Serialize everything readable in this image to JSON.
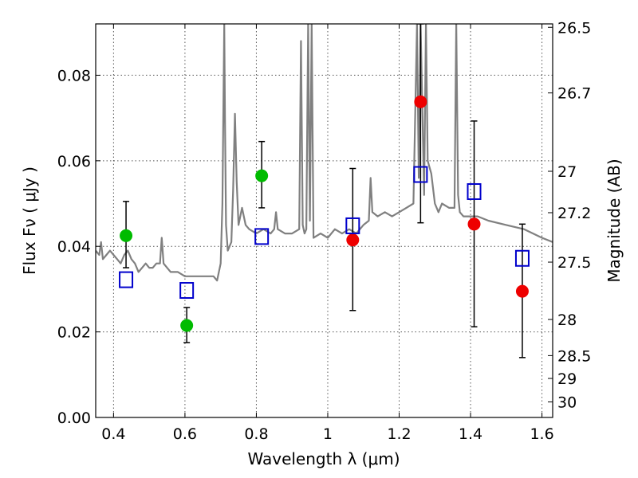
{
  "chart_data": {
    "type": "scatter",
    "xlabel": "Wavelength  λ (μm)",
    "ylabel": "Flux  Fν  ( μJy )",
    "y2label": "Magnitude (AB)",
    "xlim": [
      0.35,
      1.63
    ],
    "ylim": [
      0.0,
      0.092
    ],
    "grid": true,
    "x_ticks": [
      {
        "value": 0.4,
        "label": "0.4"
      },
      {
        "value": 0.6,
        "label": "0.6"
      },
      {
        "value": 0.8,
        "label": "0.8"
      },
      {
        "value": 1.0,
        "label": "1"
      },
      {
        "value": 1.2,
        "label": "1.2"
      },
      {
        "value": 1.4,
        "label": "1.4"
      },
      {
        "value": 1.6,
        "label": "1.6"
      }
    ],
    "y_ticks": [
      {
        "value": 0.0,
        "label": "0.00"
      },
      {
        "value": 0.02,
        "label": "0.02"
      },
      {
        "value": 0.04,
        "label": "0.04"
      },
      {
        "value": 0.06,
        "label": "0.06"
      },
      {
        "value": 0.08,
        "label": "0.08"
      }
    ],
    "y2_ticks": [
      {
        "value": 26.5,
        "label": "26.5"
      },
      {
        "value": 26.7,
        "label": "26.7"
      },
      {
        "value": 27.0,
        "label": "27"
      },
      {
        "value": 27.2,
        "label": "27.2"
      },
      {
        "value": 27.5,
        "label": "27.5"
      },
      {
        "value": 28.0,
        "label": "28"
      },
      {
        "value": 28.5,
        "label": "28.5"
      },
      {
        "value": 29.0,
        "label": "29"
      },
      {
        "value": 30.0,
        "label": "30"
      }
    ],
    "series": [
      {
        "kind": "line",
        "color": "#808080",
        "x": [
          0.35,
          0.36,
          0.365,
          0.37,
          0.38,
          0.39,
          0.4,
          0.41,
          0.42,
          0.43,
          0.44,
          0.45,
          0.46,
          0.47,
          0.48,
          0.49,
          0.5,
          0.51,
          0.52,
          0.53,
          0.535,
          0.54,
          0.55,
          0.56,
          0.58,
          0.6,
          0.62,
          0.64,
          0.66,
          0.68,
          0.69,
          0.7,
          0.705,
          0.71,
          0.712,
          0.715,
          0.72,
          0.73,
          0.735,
          0.74,
          0.745,
          0.75,
          0.755,
          0.76,
          0.77,
          0.78,
          0.8,
          0.82,
          0.84,
          0.85,
          0.855,
          0.86,
          0.88,
          0.9,
          0.92,
          0.925,
          0.93,
          0.935,
          0.94,
          0.945,
          0.95,
          0.955,
          0.96,
          0.98,
          1.0,
          1.02,
          1.04,
          1.06,
          1.08,
          1.1,
          1.115,
          1.12,
          1.125,
          1.14,
          1.16,
          1.18,
          1.2,
          1.22,
          1.24,
          1.25,
          1.255,
          1.26,
          1.27,
          1.275,
          1.28,
          1.29,
          1.3,
          1.31,
          1.32,
          1.34,
          1.355,
          1.36,
          1.365,
          1.37,
          1.38,
          1.4,
          1.42,
          1.45,
          1.5,
          1.55,
          1.6,
          1.63
        ],
        "y": [
          0.039,
          0.038,
          0.041,
          0.037,
          0.038,
          0.039,
          0.038,
          0.037,
          0.036,
          0.038,
          0.039,
          0.037,
          0.036,
          0.034,
          0.035,
          0.036,
          0.035,
          0.035,
          0.036,
          0.036,
          0.042,
          0.036,
          0.035,
          0.034,
          0.034,
          0.033,
          0.033,
          0.033,
          0.033,
          0.033,
          0.032,
          0.036,
          0.05,
          0.092,
          0.07,
          0.045,
          0.039,
          0.041,
          0.053,
          0.071,
          0.055,
          0.045,
          0.047,
          0.049,
          0.045,
          0.044,
          0.043,
          0.044,
          0.043,
          0.044,
          0.048,
          0.044,
          0.043,
          0.043,
          0.044,
          0.088,
          0.045,
          0.043,
          0.044,
          0.092,
          0.046,
          0.092,
          0.042,
          0.043,
          0.042,
          0.044,
          0.043,
          0.044,
          0.043,
          0.045,
          0.046,
          0.056,
          0.048,
          0.047,
          0.048,
          0.047,
          0.048,
          0.049,
          0.05,
          0.092,
          0.056,
          0.092,
          0.052,
          0.092,
          0.06,
          0.057,
          0.05,
          0.048,
          0.05,
          0.049,
          0.049,
          0.092,
          0.052,
          0.048,
          0.047,
          0.047,
          0.047,
          0.046,
          0.045,
          0.044,
          0.042,
          0.041
        ]
      },
      {
        "kind": "points",
        "color": "#00bb00",
        "points": [
          {
            "x": 0.435,
            "y": 0.0425,
            "lo": 0.035,
            "hi": 0.0505
          },
          {
            "x": 0.605,
            "y": 0.0215,
            "lo": 0.0175,
            "hi": 0.0257
          },
          {
            "x": 0.815,
            "y": 0.0565,
            "lo": 0.049,
            "hi": 0.0645
          }
        ]
      },
      {
        "kind": "points",
        "color": "#ee0000",
        "points": [
          {
            "x": 1.07,
            "y": 0.0415,
            "lo": 0.025,
            "hi": 0.0582
          },
          {
            "x": 1.26,
            "y": 0.0738,
            "lo": 0.0455,
            "hi": 0.092
          },
          {
            "x": 1.41,
            "y": 0.0452,
            "lo": 0.0212,
            "hi": 0.0693
          },
          {
            "x": 1.545,
            "y": 0.0295,
            "lo": 0.014,
            "hi": 0.0452
          }
        ]
      },
      {
        "kind": "squares",
        "color": "#0000cc",
        "points": [
          {
            "x": 0.435,
            "y": 0.0322
          },
          {
            "x": 0.605,
            "y": 0.0297
          },
          {
            "x": 0.815,
            "y": 0.0423
          },
          {
            "x": 1.07,
            "y": 0.0448
          },
          {
            "x": 1.26,
            "y": 0.0568
          },
          {
            "x": 1.41,
            "y": 0.0528
          },
          {
            "x": 1.545,
            "y": 0.0372
          }
        ]
      }
    ]
  }
}
